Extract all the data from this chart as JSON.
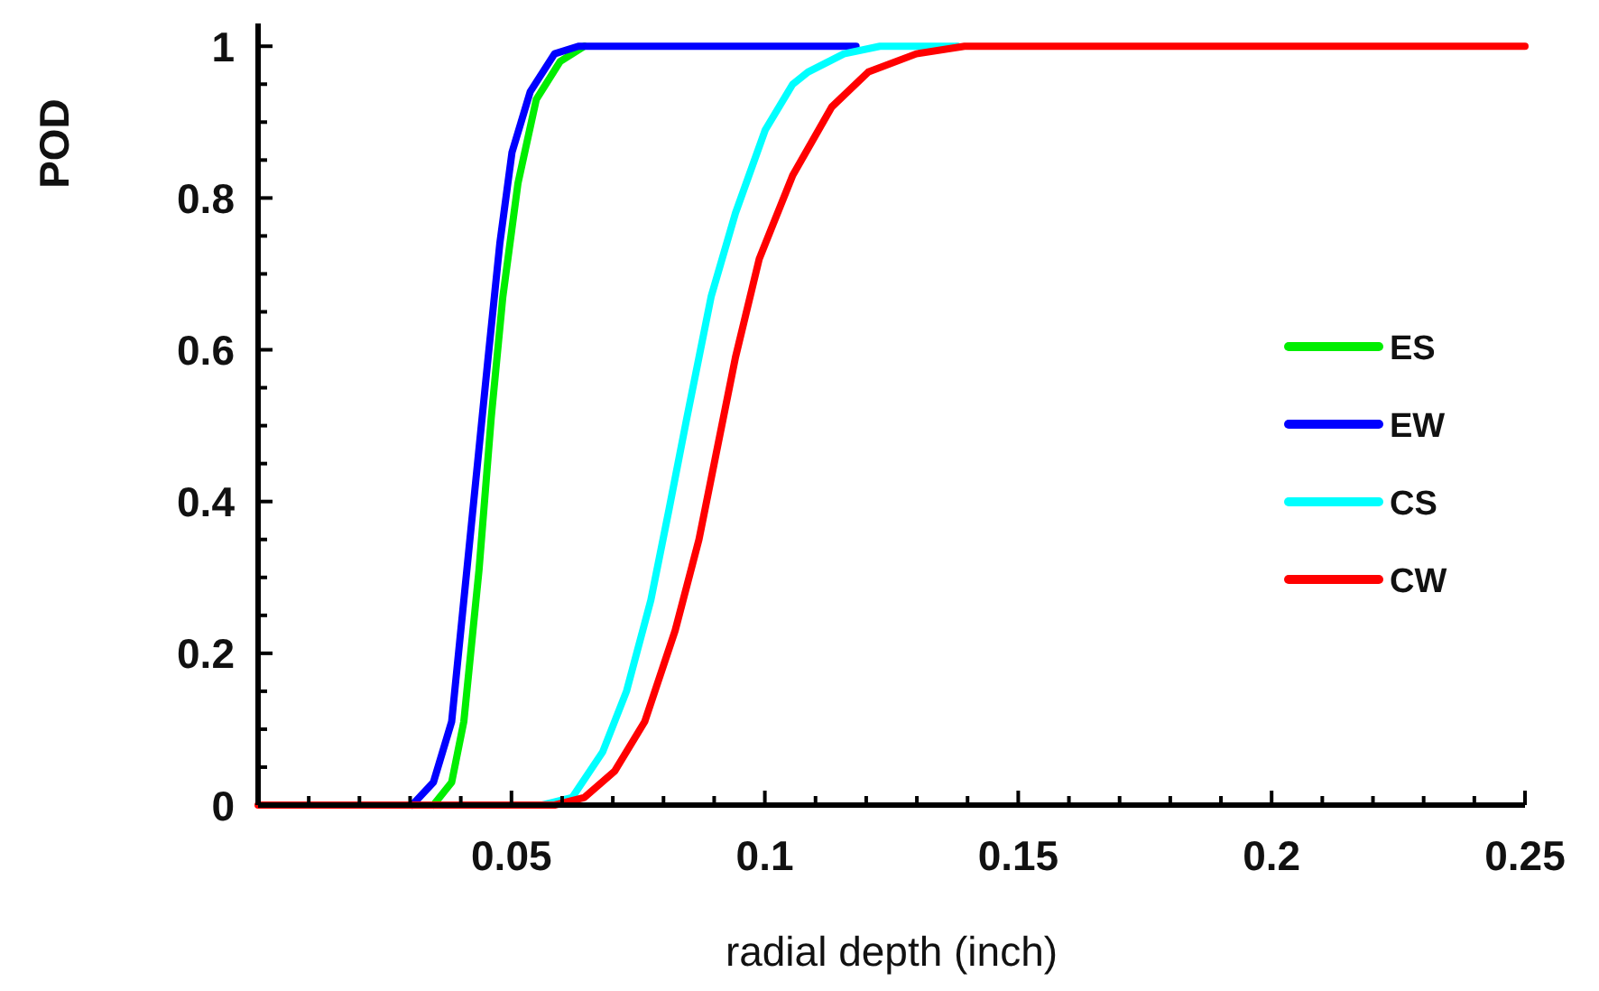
{
  "chart_data": {
    "type": "line",
    "xlabel": "radial depth (inch)",
    "ylabel": "POD",
    "xlim": [
      0,
      0.25
    ],
    "ylim": [
      0,
      1.03
    ],
    "xticks": [
      {
        "value": 0.01,
        "label": null
      },
      {
        "value": 0.02,
        "label": null
      },
      {
        "value": 0.03,
        "label": null
      },
      {
        "value": 0.04,
        "label": null
      },
      0.05,
      {
        "value": 0.06,
        "label": null
      },
      {
        "value": 0.07,
        "label": null
      },
      {
        "value": 0.08,
        "label": null
      },
      {
        "value": 0.09,
        "label": null
      },
      0.1,
      {
        "value": 0.11,
        "label": null
      },
      {
        "value": 0.12,
        "label": null
      },
      {
        "value": 0.13,
        "label": null
      },
      {
        "value": 0.14,
        "label": null
      },
      0.15,
      {
        "value": 0.16,
        "label": null
      },
      {
        "value": 0.17,
        "label": null
      },
      {
        "value": 0.18,
        "label": null
      },
      {
        "value": 0.19,
        "label": null
      },
      0.2,
      {
        "value": 0.21,
        "label": null
      },
      {
        "value": 0.22,
        "label": null
      },
      {
        "value": 0.23,
        "label": null
      },
      {
        "value": 0.24,
        "label": null
      },
      0.25
    ],
    "yticks": [
      0,
      {
        "value": 0.05,
        "label": null
      },
      {
        "value": 0.1,
        "label": null
      },
      {
        "value": 0.15,
        "label": null
      },
      0.2,
      {
        "value": 0.25,
        "label": null
      },
      {
        "value": 0.3,
        "label": null
      },
      {
        "value": 0.35,
        "label": null
      },
      0.4,
      {
        "value": 0.45,
        "label": null
      },
      {
        "value": 0.5,
        "label": null
      },
      {
        "value": 0.55,
        "label": null
      },
      0.6,
      {
        "value": 0.65,
        "label": null
      },
      {
        "value": 0.7,
        "label": null
      },
      {
        "value": 0.75,
        "label": null
      },
      0.8,
      {
        "value": 0.85,
        "label": null
      },
      {
        "value": 0.9,
        "label": null
      },
      {
        "value": 0.95,
        "label": null
      },
      1
    ],
    "grid": false,
    "legend": "right",
    "marker": "none",
    "line_style": "solid",
    "series": [
      {
        "name": "ES",
        "color": "#00ee00",
        "x": [
          0.0346,
          0.0382,
          0.0406,
          0.0436,
          0.046,
          0.0483,
          0.0513,
          0.0549,
          0.0596,
          0.0644
        ],
        "values": [
          0,
          0.03,
          0.11,
          0.31,
          0.51,
          0.67,
          0.82,
          0.93,
          0.98,
          1
        ]
      },
      {
        "name": "EW",
        "color": "#0000ff",
        "x": [
          0.0304,
          0.0346,
          0.0382,
          0.0406,
          0.043,
          0.0454,
          0.0477,
          0.0501,
          0.0537,
          0.0585,
          0.0632,
          0.118
        ],
        "values": [
          0,
          0.03,
          0.11,
          0.27,
          0.43,
          0.59,
          0.74,
          0.86,
          0.94,
          0.99,
          1,
          1
        ]
      },
      {
        "name": "CS",
        "color": "#00ffff",
        "x": [
          0.0561,
          0.062,
          0.068,
          0.0727,
          0.0775,
          0.0811,
          0.0846,
          0.0894,
          0.0942,
          0.1001,
          0.1055,
          0.1085,
          0.1156,
          0.1227,
          0.138
        ],
        "values": [
          0,
          0.01,
          0.07,
          0.15,
          0.27,
          0.39,
          0.51,
          0.67,
          0.78,
          0.89,
          0.95,
          0.966,
          0.99,
          1,
          1
        ]
      },
      {
        "name": "CW",
        "color": "#ff0000",
        "x": [
          0,
          0.0585,
          0.0644,
          0.0704,
          0.0763,
          0.0823,
          0.087,
          0.0906,
          0.0942,
          0.0989,
          0.1055,
          0.1132,
          0.1204,
          0.1299,
          0.1394,
          0.25
        ],
        "values": [
          0,
          0,
          0.01,
          0.045,
          0.11,
          0.23,
          0.35,
          0.47,
          0.59,
          0.72,
          0.83,
          0.92,
          0.966,
          0.99,
          1,
          1
        ]
      }
    ]
  }
}
